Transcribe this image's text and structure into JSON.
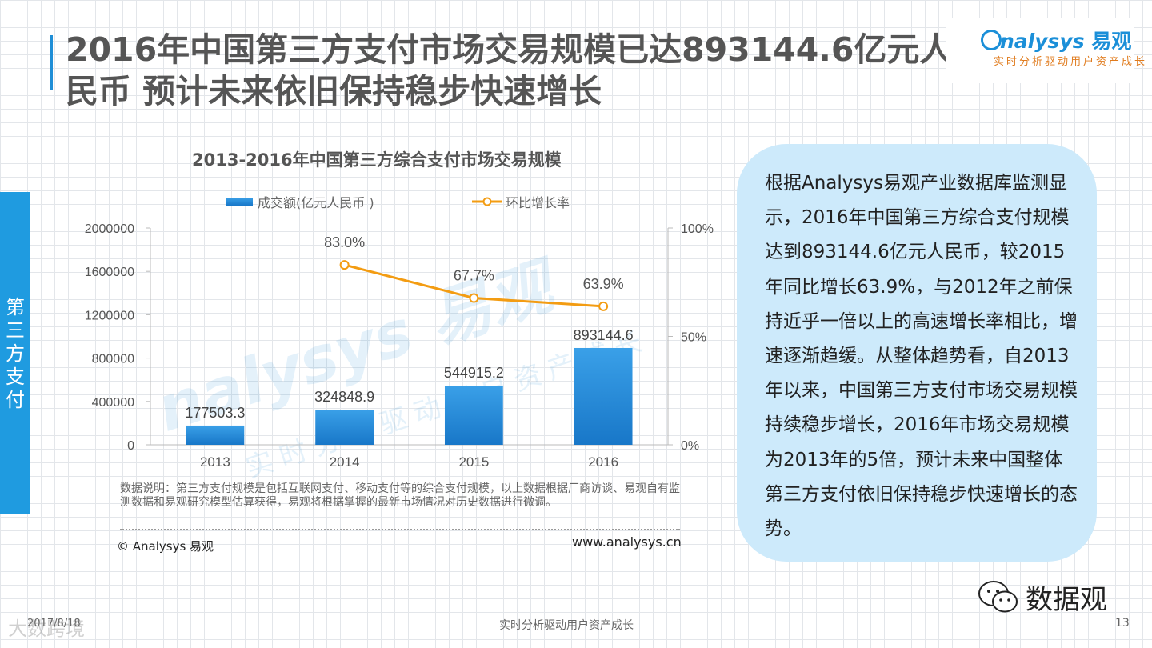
{
  "slide": {
    "title": "2016年中国第三方支付市场交易规模已达893144.6亿元人民币  预计未来依旧保持稳步快速增长",
    "side_tab": "第三方支付",
    "logo": {
      "brand": "nalysys",
      "brand_cn": "易观",
      "tagline": "实时分析驱动用户资产成长"
    },
    "note": "数据说明：第三方支付规模是包括互联网支付、移动支付等的综合支付规模，以上数据根据厂商访谈、易观自有监测数据和易观研究模型估算获得，易观将根据掌握的最新市场情况对历史数据进行微调。",
    "copyright": "© Analysys 易观",
    "website": "www.analysys.cn",
    "summary": "根据Analysys易观产业数据库监测显示，2016年中国第三方综合支付规模达到893144.6亿元人民币，较2015年同比增长63.9%，与2012年之前保持近乎一倍以上的高速增长率相比，增速逐渐趋缓。从整体趋势看，自2013年以来，中国第三方支付市场交易规模持续稳步增长，2016年市场交易规模为2013年的5倍，预计未来中国整体第三方支付依旧保持稳步快速增长的态势。",
    "wechat_label": "数据观",
    "footer_date": "2017/8/18",
    "footer_brand": "大数跨境",
    "footer_center": "实时分析驱动用户资产成长",
    "page_number": "13",
    "watermark": "nalysys 易观",
    "watermark_sub": "实时分析驱动用户资产成长"
  },
  "colors": {
    "accent": "#1f9be0",
    "bar_top": "#3aa0e8",
    "bar_bottom": "#1877c8",
    "line": "#f39c12",
    "text_box": "#cdeafb"
  },
  "chart_data": {
    "type": "bar",
    "title": "2013-2016年中国第三方综合支付市场交易规模",
    "categories": [
      "2013",
      "2014",
      "2015",
      "2016"
    ],
    "series": [
      {
        "name": "成交额(亿元人民币 )",
        "type": "bar",
        "axis": "left",
        "values": [
          177503.3,
          324848.9,
          544915.2,
          893144.6
        ],
        "labels": [
          "177503.3",
          "324848.9",
          "544915.2",
          "893144.6"
        ]
      },
      {
        "name": "环比增长率",
        "type": "line",
        "axis": "right",
        "values": [
          null,
          83.0,
          67.7,
          63.9
        ],
        "labels": [
          "",
          "83.0%",
          "67.7%",
          "63.9%"
        ]
      }
    ],
    "y_left": {
      "min": 0,
      "max": 2000000,
      "ticks": [
        "0",
        "400000",
        "800000",
        "1200000",
        "1600000",
        "2000000"
      ]
    },
    "y_right": {
      "min": 0,
      "max": 100,
      "ticks": [
        "0%",
        "50%",
        "100%"
      ]
    },
    "legend_position": "top",
    "grid": false
  }
}
